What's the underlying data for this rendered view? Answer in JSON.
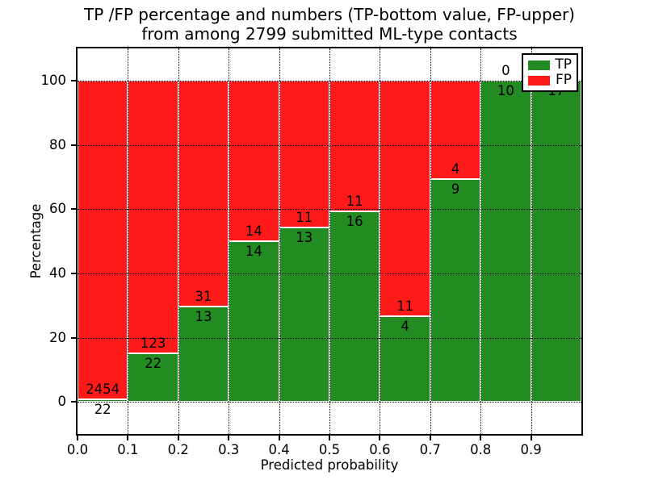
{
  "chart_data": {
    "type": "bar",
    "stacked": true,
    "orientation": "vertical",
    "title_line1": "TP /FP percentage and numbers (TP-bottom value, FP-upper)",
    "title_line2": "from among 2799 submitted ML-type contacts",
    "total_contacts": 2799,
    "xlabel": "Predicted probability",
    "ylabel": "Percentage",
    "xlim": [
      0.0,
      1.0
    ],
    "ylim": [
      -10,
      110
    ],
    "bin_width": 0.1,
    "grid": "dotted black, drawn above bars",
    "yticks": [
      0,
      20,
      40,
      60,
      80,
      100
    ],
    "xticks": [
      {
        "value": 0.0,
        "label": "0.0"
      },
      {
        "value": 0.1,
        "label": "0.1"
      },
      {
        "value": 0.2,
        "label": "0.2"
      },
      {
        "value": 0.3,
        "label": "0.3"
      },
      {
        "value": 0.4,
        "label": "0.4"
      },
      {
        "value": 0.5,
        "label": "0.5"
      },
      {
        "value": 0.6,
        "label": "0.6"
      },
      {
        "value": 0.7,
        "label": "0.7"
      },
      {
        "value": 0.8,
        "label": "0.8"
      },
      {
        "value": 0.9,
        "label": "0.9"
      }
    ],
    "bins": [
      {
        "range": "0.0-0.1",
        "tp": 22,
        "fp": 2454
      },
      {
        "range": "0.1-0.2",
        "tp": 22,
        "fp": 123
      },
      {
        "range": "0.2-0.3",
        "tp": 13,
        "fp": 31
      },
      {
        "range": "0.3-0.4",
        "tp": 14,
        "fp": 14
      },
      {
        "range": "0.4-0.5",
        "tp": 13,
        "fp": 11
      },
      {
        "range": "0.5-0.6",
        "tp": 16,
        "fp": 11
      },
      {
        "range": "0.6-0.7",
        "tp": 4,
        "fp": 11
      },
      {
        "range": "0.7-0.8",
        "tp": 9,
        "fp": 4
      },
      {
        "range": "0.8-0.9",
        "tp": 10,
        "fp": 0
      },
      {
        "range": "0.9-1.0",
        "tp": 17,
        "fp": 0
      }
    ],
    "colors": {
      "tp": "#228b22",
      "fp": "#ff1a1a",
      "bar_edge": "#ffffff"
    },
    "legend": {
      "position": "upper right",
      "entries": [
        {
          "label": "TP",
          "color": "#228b22"
        },
        {
          "label": "FP",
          "color": "#ff1a1a"
        }
      ]
    }
  }
}
